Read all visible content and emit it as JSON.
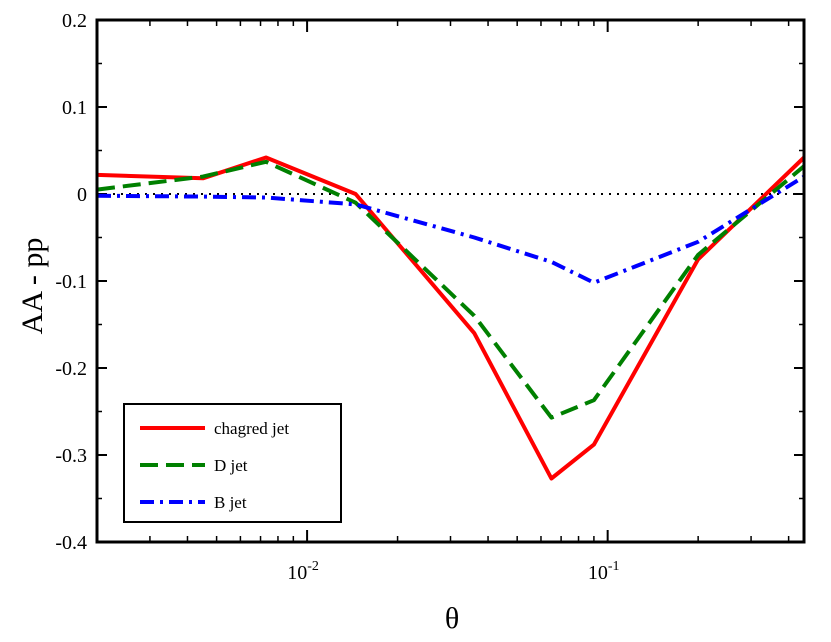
{
  "chart_data": {
    "type": "line",
    "xscale": "log",
    "xlim": [
      0.002,
      0.45
    ],
    "ylim": [
      -0.4,
      0.2
    ],
    "xlabel": "θ",
    "ylabel": "AA - pp",
    "y_ticks": [
      {
        "value": 0.2,
        "label": "0.2"
      },
      {
        "value": 0.1,
        "label": "0.1"
      },
      {
        "value": 0.0,
        "label": "0"
      },
      {
        "value": -0.1,
        "label": "-0.1"
      },
      {
        "value": -0.2,
        "label": "-0.2"
      },
      {
        "value": -0.3,
        "label": "-0.3"
      },
      {
        "value": -0.4,
        "label": "-0.4"
      }
    ],
    "x_ticks": [
      {
        "value": 0.01,
        "base": "10",
        "exp": "-2"
      },
      {
        "value": 0.1,
        "base": "10",
        "exp": "-1"
      }
    ],
    "reference_line": {
      "y": 0,
      "style": "dotted"
    },
    "legend_position": "bottom-left",
    "series": [
      {
        "name": "chagred jet",
        "color": "#ff0000",
        "style": "solid",
        "x": [
          0.002,
          0.0045,
          0.0073,
          0.0145,
          0.036,
          0.065,
          0.09,
          0.2,
          0.45
        ],
        "y": [
          0.022,
          0.018,
          0.042,
          0.0,
          -0.16,
          -0.327,
          -0.288,
          -0.075,
          0.042
        ]
      },
      {
        "name": "D jet",
        "color": "#008000",
        "style": "dashed",
        "x": [
          0.002,
          0.0045,
          0.0073,
          0.0145,
          0.036,
          0.065,
          0.09,
          0.2,
          0.45
        ],
        "y": [
          0.005,
          0.02,
          0.037,
          -0.01,
          -0.14,
          -0.257,
          -0.237,
          -0.07,
          0.032
        ]
      },
      {
        "name": "B jet",
        "color": "#0000ff",
        "style": "dashdot",
        "x": [
          0.002,
          0.0045,
          0.0073,
          0.0145,
          0.036,
          0.065,
          0.09,
          0.2,
          0.45
        ],
        "y": [
          -0.002,
          -0.003,
          -0.004,
          -0.012,
          -0.05,
          -0.078,
          -0.102,
          -0.055,
          0.02
        ]
      }
    ]
  }
}
